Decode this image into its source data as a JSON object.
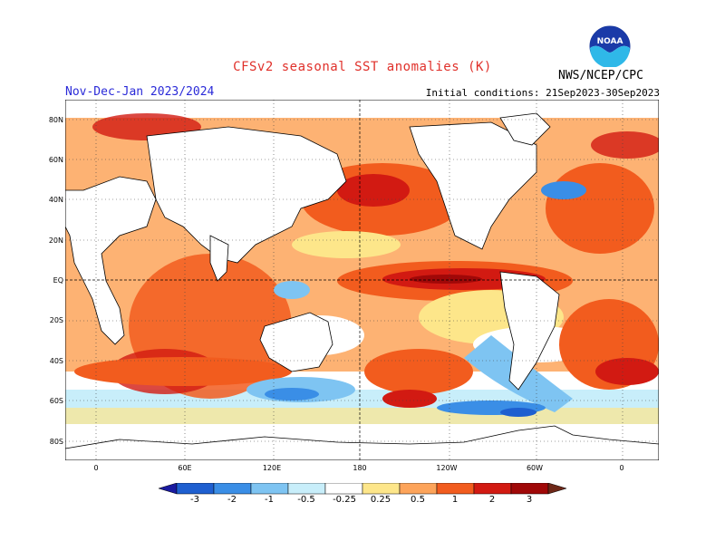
{
  "header": {
    "title": "CFSv2 seasonal SST anomalies (K)",
    "season": "Nov-Dec-Jan 2023/2024",
    "initial_conditions": "Initial conditions: 21Sep2023-30Sep2023",
    "agency": "NWS/NCEP/CPC",
    "logo_text": "NOAA"
  },
  "axes": {
    "lat_labels": [
      "80N",
      "60N",
      "40N",
      "20N",
      "EQ",
      "20S",
      "40S",
      "60S",
      "80S"
    ],
    "lon_labels": [
      "0",
      "60E",
      "120E",
      "180",
      "120W",
      "60W",
      "0"
    ]
  },
  "legend": {
    "labels": [
      "-3",
      "-2",
      "-1",
      "-0.5",
      "-0.25",
      "0.25",
      "0.5",
      "1",
      "2",
      "3"
    ],
    "colors": [
      "#1a1aa0",
      "#1e5fd0",
      "#3a8ee6",
      "#7ec4f2",
      "#c8eefa",
      "#ffffff",
      "#fde68a",
      "#fda45a",
      "#f25c1e",
      "#d21a12",
      "#a00808",
      "#6e2818"
    ]
  }
}
